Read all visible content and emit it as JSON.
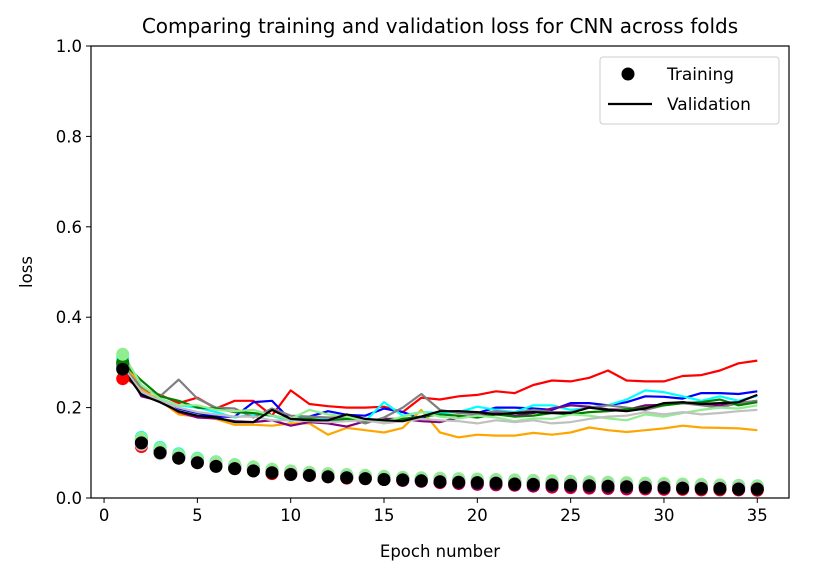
{
  "chart_data": {
    "type": "line",
    "title": "Comparing training and validation loss for CNN across folds",
    "xlabel": "Epoch number",
    "ylabel": "loss",
    "xlim": [
      -0.7,
      36.7
    ],
    "ylim": [
      0,
      1.0
    ],
    "xticks": [
      "0",
      "5",
      "10",
      "15",
      "20",
      "25",
      "30",
      "35"
    ],
    "yticks": [
      "0.0",
      "0.2",
      "0.4",
      "0.6",
      "0.8",
      "1.0"
    ],
    "grid": false,
    "legend": {
      "placement": "top-right",
      "entries": [
        {
          "label": "Training",
          "marker": "dot",
          "color": "#000000"
        },
        {
          "label": "Validation",
          "marker": "line",
          "color": "#000000"
        }
      ]
    },
    "x": [
      1,
      2,
      3,
      4,
      5,
      6,
      7,
      8,
      9,
      10,
      11,
      12,
      13,
      14,
      15,
      16,
      17,
      18,
      19,
      20,
      21,
      22,
      23,
      24,
      25,
      26,
      27,
      28,
      29,
      30,
      31,
      32,
      33,
      34,
      35
    ],
    "series": [
      {
        "color": "#ff0000",
        "validation": [
          0.27,
          0.24,
          0.228,
          0.21,
          0.222,
          0.198,
          0.215,
          0.215,
          0.182,
          0.238,
          0.208,
          0.203,
          0.2,
          0.2,
          0.202,
          0.19,
          0.222,
          0.218,
          0.225,
          0.228,
          0.236,
          0.232,
          0.25,
          0.26,
          0.258,
          0.266,
          0.282,
          0.26,
          0.258,
          0.258,
          0.27,
          0.272,
          0.282,
          0.298,
          0.304
        ],
        "training": [
          0.264,
          0.114,
          0.1,
          0.088,
          0.078,
          0.072,
          0.065,
          0.06,
          0.054,
          0.052,
          0.05,
          0.047,
          0.044,
          0.043,
          0.041,
          0.039,
          0.037,
          0.034,
          0.032,
          0.03,
          0.029,
          0.028,
          0.026,
          0.024,
          0.023,
          0.022,
          0.021,
          0.02,
          0.02,
          0.019,
          0.019,
          0.018,
          0.018,
          0.018,
          0.017
        ]
      },
      {
        "color": "#0000ff",
        "validation": [
          0.285,
          0.23,
          0.22,
          0.198,
          0.188,
          0.18,
          0.18,
          0.212,
          0.215,
          0.172,
          0.18,
          0.192,
          0.184,
          0.182,
          0.198,
          0.19,
          0.176,
          0.19,
          0.192,
          0.188,
          0.2,
          0.2,
          0.198,
          0.195,
          0.21,
          0.21,
          0.205,
          0.212,
          0.225,
          0.224,
          0.22,
          0.232,
          0.232,
          0.23,
          0.236
        ],
        "training": [
          0.29,
          0.124,
          0.104,
          0.092,
          0.082,
          0.074,
          0.068,
          0.063,
          0.058,
          0.055,
          0.052,
          0.049,
          0.047,
          0.045,
          0.043,
          0.041,
          0.039,
          0.037,
          0.035,
          0.034,
          0.032,
          0.031,
          0.029,
          0.028,
          0.027,
          0.026,
          0.025,
          0.024,
          0.024,
          0.023,
          0.022,
          0.022,
          0.021,
          0.021,
          0.02
        ]
      },
      {
        "color": "#00ffff",
        "validation": [
          0.3,
          0.25,
          0.22,
          0.205,
          0.2,
          0.19,
          0.178,
          0.185,
          0.182,
          0.17,
          0.18,
          0.175,
          0.178,
          0.17,
          0.212,
          0.182,
          0.19,
          0.188,
          0.19,
          0.202,
          0.195,
          0.19,
          0.205,
          0.205,
          0.195,
          0.2,
          0.205,
          0.218,
          0.238,
          0.234,
          0.225,
          0.215,
          0.225,
          0.215,
          0.226
        ],
        "training": [
          0.31,
          0.134,
          0.112,
          0.098,
          0.088,
          0.08,
          0.074,
          0.068,
          0.062,
          0.058,
          0.055,
          0.052,
          0.05,
          0.048,
          0.046,
          0.044,
          0.042,
          0.04,
          0.039,
          0.038,
          0.036,
          0.035,
          0.034,
          0.033,
          0.032,
          0.031,
          0.03,
          0.029,
          0.028,
          0.028,
          0.027,
          0.026,
          0.025,
          0.025,
          0.024
        ]
      },
      {
        "color": "#ffa500",
        "validation": [
          0.31,
          0.24,
          0.215,
          0.185,
          0.18,
          0.175,
          0.162,
          0.162,
          0.16,
          0.165,
          0.165,
          0.14,
          0.155,
          0.15,
          0.145,
          0.155,
          0.195,
          0.145,
          0.134,
          0.14,
          0.138,
          0.138,
          0.144,
          0.14,
          0.145,
          0.156,
          0.15,
          0.146,
          0.15,
          0.154,
          0.16,
          0.156,
          0.155,
          0.154,
          0.15
        ],
        "training": [
          0.3,
          0.12,
          0.1,
          0.088,
          0.08,
          0.073,
          0.067,
          0.062,
          0.058,
          0.054,
          0.051,
          0.049,
          0.047,
          0.045,
          0.043,
          0.041,
          0.04,
          0.038,
          0.037,
          0.036,
          0.035,
          0.034,
          0.033,
          0.032,
          0.031,
          0.03,
          0.029,
          0.028,
          0.027,
          0.027,
          0.026,
          0.025,
          0.025,
          0.024,
          0.024
        ]
      },
      {
        "color": "#800080",
        "validation": [
          0.3,
          0.225,
          0.215,
          0.19,
          0.178,
          0.176,
          0.17,
          0.168,
          0.172,
          0.16,
          0.168,
          0.165,
          0.158,
          0.17,
          0.175,
          0.175,
          0.17,
          0.168,
          0.178,
          0.182,
          0.19,
          0.182,
          0.188,
          0.198,
          0.205,
          0.202,
          0.196,
          0.195,
          0.205,
          0.206,
          0.212,
          0.208,
          0.205,
          0.21,
          0.215
        ],
        "training": [
          0.296,
          0.122,
          0.102,
          0.09,
          0.08,
          0.073,
          0.066,
          0.061,
          0.056,
          0.053,
          0.05,
          0.047,
          0.045,
          0.043,
          0.041,
          0.039,
          0.037,
          0.035,
          0.033,
          0.031,
          0.03,
          0.029,
          0.027,
          0.026,
          0.025,
          0.024,
          0.023,
          0.022,
          0.022,
          0.021,
          0.021,
          0.02,
          0.02,
          0.019,
          0.019
        ]
      },
      {
        "color": "#808080",
        "validation": [
          0.29,
          0.245,
          0.225,
          0.262,
          0.22,
          0.2,
          0.198,
          0.178,
          0.198,
          0.182,
          0.18,
          0.178,
          0.178,
          0.165,
          0.178,
          0.2,
          0.23,
          0.195,
          0.188,
          0.185,
          0.192,
          0.188,
          0.195,
          0.19,
          0.19,
          0.2,
          0.205,
          0.2,
          0.195,
          0.205,
          0.21,
          0.205,
          0.2,
          0.21,
          0.215
        ],
        "training": [
          0.295,
          0.128,
          0.106,
          0.093,
          0.083,
          0.076,
          0.07,
          0.065,
          0.06,
          0.056,
          0.053,
          0.05,
          0.048,
          0.046,
          0.044,
          0.042,
          0.04,
          0.038,
          0.037,
          0.035,
          0.034,
          0.033,
          0.032,
          0.031,
          0.03,
          0.029,
          0.028,
          0.028,
          0.027,
          0.026,
          0.026,
          0.025,
          0.024,
          0.024,
          0.023
        ]
      },
      {
        "color": "#008000",
        "validation": [
          0.3,
          0.26,
          0.225,
          0.215,
          0.2,
          0.198,
          0.19,
          0.188,
          0.182,
          0.175,
          0.175,
          0.17,
          0.175,
          0.17,
          0.172,
          0.175,
          0.18,
          0.185,
          0.182,
          0.178,
          0.185,
          0.18,
          0.182,
          0.188,
          0.185,
          0.19,
          0.192,
          0.196,
          0.2,
          0.205,
          0.21,
          0.212,
          0.218,
          0.205,
          0.212
        ],
        "training": [
          0.3,
          0.13,
          0.108,
          0.095,
          0.086,
          0.078,
          0.072,
          0.067,
          0.062,
          0.058,
          0.055,
          0.052,
          0.05,
          0.048,
          0.046,
          0.044,
          0.043,
          0.042,
          0.041,
          0.04,
          0.039,
          0.038,
          0.037,
          0.036,
          0.035,
          0.034,
          0.033,
          0.032,
          0.031,
          0.03,
          0.029,
          0.028,
          0.027,
          0.026,
          0.025
        ]
      },
      {
        "color": "#90ee90",
        "validation": [
          0.32,
          0.25,
          0.22,
          0.205,
          0.205,
          0.195,
          0.192,
          0.195,
          0.182,
          0.175,
          0.195,
          0.185,
          0.18,
          0.172,
          0.168,
          0.18,
          0.19,
          0.18,
          0.176,
          0.182,
          0.178,
          0.17,
          0.176,
          0.175,
          0.185,
          0.182,
          0.176,
          0.172,
          0.185,
          0.18,
          0.188,
          0.195,
          0.2,
          0.198,
          0.205
        ],
        "training": [
          0.318,
          0.132,
          0.11,
          0.096,
          0.087,
          0.08,
          0.074,
          0.069,
          0.064,
          0.06,
          0.057,
          0.054,
          0.052,
          0.05,
          0.048,
          0.046,
          0.045,
          0.044,
          0.043,
          0.042,
          0.041,
          0.04,
          0.039,
          0.038,
          0.037,
          0.036,
          0.035,
          0.034,
          0.033,
          0.032,
          0.031,
          0.03,
          0.029,
          0.028,
          0.027
        ]
      },
      {
        "color": "#c0c0c0",
        "validation": [
          0.29,
          0.235,
          0.215,
          0.2,
          0.19,
          0.185,
          0.18,
          0.18,
          0.172,
          0.172,
          0.17,
          0.168,
          0.17,
          0.172,
          0.165,
          0.17,
          0.175,
          0.172,
          0.17,
          0.165,
          0.172,
          0.168,
          0.172,
          0.165,
          0.168,
          0.175,
          0.18,
          0.182,
          0.19,
          0.185,
          0.19,
          0.185,
          0.188,
          0.192,
          0.195
        ],
        "training": [
          0.285,
          0.118,
          0.098,
          0.088,
          0.079,
          0.072,
          0.066,
          0.061,
          0.057,
          0.054,
          0.051,
          0.048,
          0.046,
          0.044,
          0.042,
          0.041,
          0.039,
          0.038,
          0.036,
          0.035,
          0.034,
          0.033,
          0.032,
          0.031,
          0.03,
          0.029,
          0.028,
          0.027,
          0.026,
          0.026,
          0.025,
          0.024,
          0.024,
          0.023,
          0.022
        ]
      },
      {
        "color": "#000000",
        "validation": [
          0.285,
          0.228,
          0.212,
          0.192,
          0.182,
          0.178,
          0.168,
          0.168,
          0.195,
          0.175,
          0.172,
          0.172,
          0.185,
          0.175,
          0.172,
          0.17,
          0.18,
          0.192,
          0.192,
          0.19,
          0.185,
          0.188,
          0.19,
          0.188,
          0.188,
          0.2,
          0.195,
          0.192,
          0.198,
          0.21,
          0.212,
          0.208,
          0.21,
          0.212,
          0.228
        ],
        "training": [
          0.285,
          0.122,
          0.1,
          0.088,
          0.078,
          0.07,
          0.065,
          0.06,
          0.056,
          0.052,
          0.05,
          0.047,
          0.045,
          0.043,
          0.041,
          0.04,
          0.038,
          0.036,
          0.035,
          0.034,
          0.033,
          0.031,
          0.03,
          0.029,
          0.028,
          0.027,
          0.026,
          0.025,
          0.024,
          0.023,
          0.022,
          0.021,
          0.021,
          0.02,
          0.02
        ]
      }
    ]
  }
}
